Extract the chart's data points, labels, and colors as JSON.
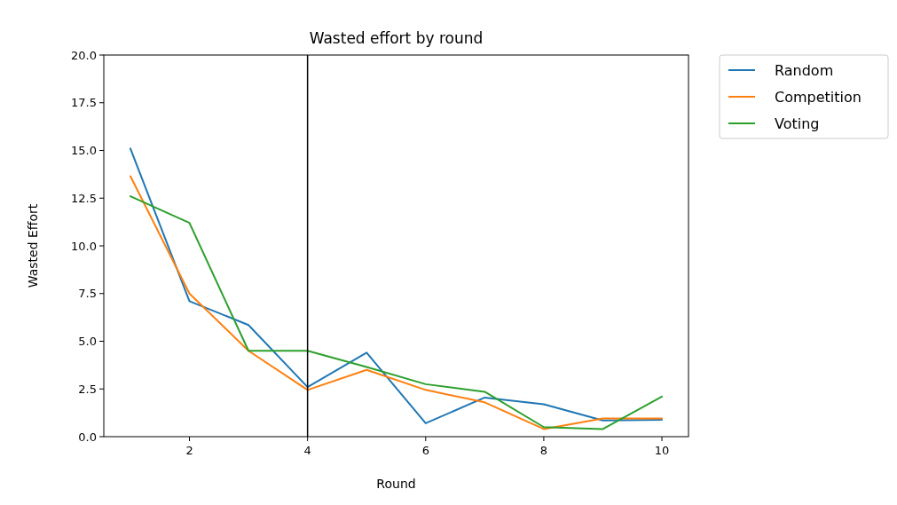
{
  "chart_data": {
    "type": "line",
    "title": "Wasted effort by round",
    "xlabel": "Round",
    "ylabel": "Wasted Effort",
    "x": [
      1,
      2,
      3,
      4,
      5,
      6,
      7,
      8,
      9,
      10
    ],
    "series": [
      {
        "name": "Random",
        "color": "#1f77b4",
        "values": [
          15.1,
          7.1,
          5.85,
          2.6,
          4.4,
          0.7,
          2.05,
          1.7,
          0.85,
          0.88
        ]
      },
      {
        "name": "Competition",
        "color": "#ff7f0e",
        "values": [
          13.65,
          7.5,
          4.5,
          2.45,
          3.5,
          2.45,
          1.8,
          0.4,
          0.95,
          0.95
        ]
      },
      {
        "name": "Voting",
        "color": "#2ca02c",
        "values": [
          12.6,
          11.2,
          4.5,
          4.5,
          3.65,
          2.75,
          2.35,
          0.5,
          0.4,
          2.1
        ]
      }
    ],
    "xlim": [
      0.55,
      10.45
    ],
    "xticks": [
      2,
      4,
      6,
      8,
      10
    ],
    "ylim": [
      0,
      20
    ],
    "yticks": [
      {
        "value": 0,
        "label": "0.0"
      },
      {
        "value": 2.5,
        "label": "2.5"
      },
      {
        "value": 5,
        "label": "5.0"
      },
      {
        "value": 7.5,
        "label": "7.5"
      },
      {
        "value": 10,
        "label": "10.0"
      },
      {
        "value": 12.5,
        "label": "12.5"
      },
      {
        "value": 15,
        "label": "15.0"
      },
      {
        "value": 17.5,
        "label": "17.5"
      },
      {
        "value": 20,
        "label": "20.0"
      }
    ],
    "ref_lines": [
      {
        "axis": "x",
        "value": 4,
        "color": "#000000"
      }
    ],
    "legend": "top right",
    "grid": false,
    "marker": "none",
    "line_style": "solid"
  }
}
